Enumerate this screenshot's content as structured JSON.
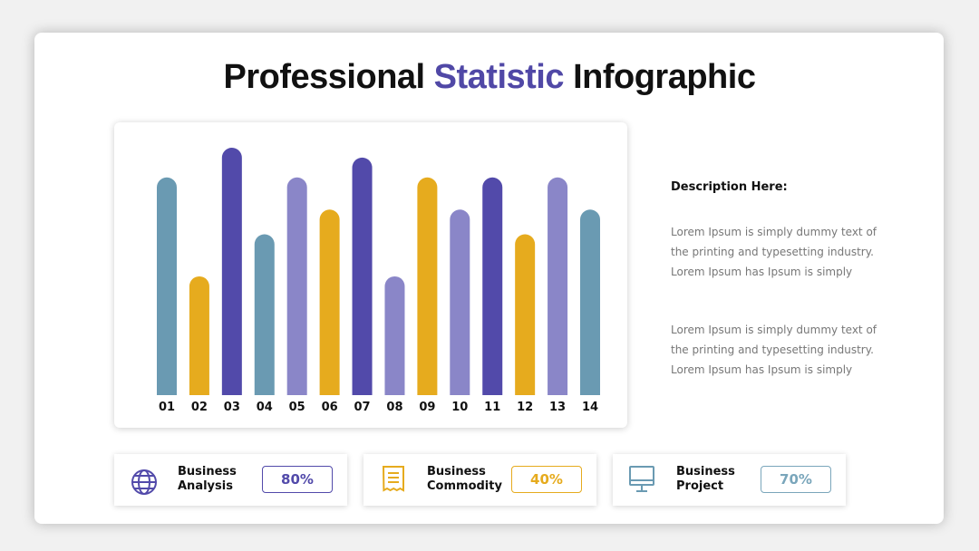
{
  "title": {
    "before": "Professional",
    "highlight": "Statistic",
    "after": "Infographic"
  },
  "chart_data": {
    "type": "bar",
    "categories": [
      "01",
      "02",
      "03",
      "04",
      "05",
      "06",
      "07",
      "08",
      "09",
      "10",
      "11",
      "12",
      "13",
      "14"
    ],
    "values": [
      88,
      48,
      100,
      65,
      88,
      75,
      96,
      48,
      88,
      75,
      88,
      65,
      88,
      75
    ],
    "colors": [
      "#6a9ab2",
      "#e6ab1e",
      "#524aaa",
      "#6a9ab2",
      "#8a86c8",
      "#e6ab1e",
      "#524aaa",
      "#8a86c8",
      "#e6ab1e",
      "#8a86c8",
      "#524aaa",
      "#e6ab1e",
      "#8a86c8",
      "#6a9ab2"
    ],
    "ylim": [
      0,
      100
    ]
  },
  "description": {
    "heading": "Description Here:",
    "paragraphs": [
      "Lorem Ipsum is simply dummy text of the printing and typesetting industry. Lorem Ipsum has Ipsum is simply",
      "Lorem Ipsum is simply dummy text of the printing and typesetting industry. Lorem Ipsum has Ipsum is simply"
    ]
  },
  "cards": [
    {
      "label": "Business Analysis",
      "value": "80%"
    },
    {
      "label": "Business Commodity",
      "value": "40%"
    },
    {
      "label": "Business Project",
      "value": "70%"
    }
  ]
}
